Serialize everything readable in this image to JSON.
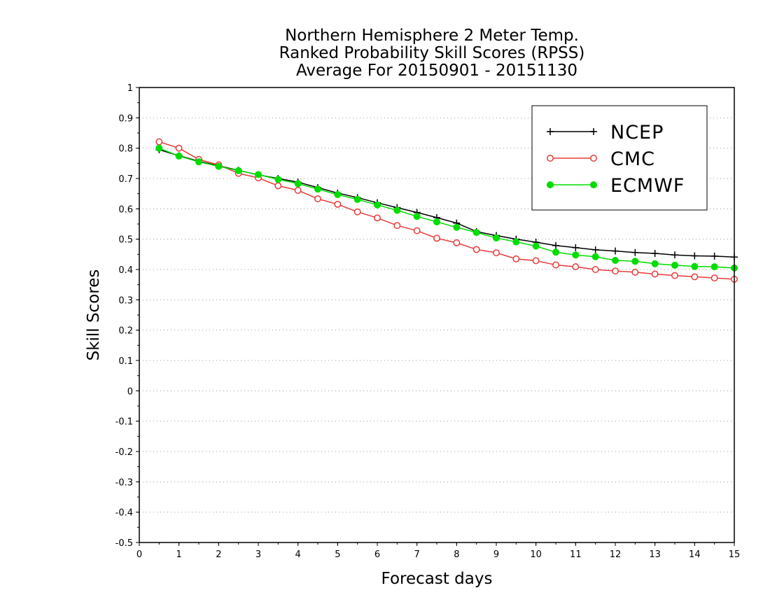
{
  "chart_data": {
    "type": "line",
    "title_lines": [
      "Northern Hemisphere 2 Meter Temp.",
      "Ranked Probability Skill Scores (RPSS)",
      "Average For 20150901 - 20151130"
    ],
    "xlabel": "Forecast days",
    "ylabel": "Skill Scores",
    "xlim": [
      0,
      15
    ],
    "ylim": [
      -0.5,
      1
    ],
    "x_ticks": [
      "0",
      "1",
      "2",
      "3",
      "4",
      "5",
      "6",
      "7",
      "8",
      "9",
      "10",
      "11",
      "12",
      "13",
      "14",
      "15"
    ],
    "y_ticks": [
      "1",
      "0.9",
      "0.8",
      "0.7",
      "0.6",
      "0.5",
      "0.4",
      "0.3",
      "0.2",
      "0.1",
      "0",
      "-0.1",
      "-0.2",
      "-0.3",
      "-0.4",
      "-0.5"
    ],
    "grid": "horizontal dotted",
    "legend_position": "top-right",
    "x": [
      0.5,
      1,
      1.5,
      2,
      2.5,
      3,
      3.5,
      4,
      4.5,
      5,
      5.5,
      6,
      6.5,
      7,
      7.5,
      8,
      8.5,
      9,
      9.5,
      10,
      10.5,
      11,
      11.5,
      12,
      12.5,
      13,
      13.5,
      14,
      14.5,
      15
    ],
    "series": [
      {
        "name": "NCEP",
        "color": "#000000",
        "marker": "plus",
        "values": [
          0.795,
          0.775,
          0.757,
          0.742,
          0.727,
          0.712,
          0.7,
          0.688,
          0.67,
          0.652,
          0.637,
          0.62,
          0.604,
          0.588,
          0.571,
          0.553,
          0.525,
          0.512,
          0.5,
          0.49,
          0.479,
          0.472,
          0.465,
          0.461,
          0.456,
          0.453,
          0.448,
          0.445,
          0.444,
          0.441
        ]
      },
      {
        "name": "CMC",
        "color": "#e83a3a",
        "marker": "open-circle",
        "values": [
          0.821,
          0.8,
          0.763,
          0.745,
          0.717,
          0.702,
          0.676,
          0.661,
          0.633,
          0.615,
          0.59,
          0.57,
          0.545,
          0.528,
          0.503,
          0.488,
          0.466,
          0.455,
          0.435,
          0.429,
          0.415,
          0.409,
          0.4,
          0.395,
          0.391,
          0.385,
          0.38,
          0.376,
          0.372,
          0.368
        ]
      },
      {
        "name": "ECMWF",
        "color": "#00dd00",
        "marker": "filled-circle",
        "values": [
          0.8,
          0.774,
          0.755,
          0.74,
          0.726,
          0.713,
          0.697,
          0.683,
          0.665,
          0.647,
          0.631,
          0.613,
          0.595,
          0.575,
          0.557,
          0.539,
          0.522,
          0.504,
          0.491,
          0.477,
          0.457,
          0.448,
          0.442,
          0.43,
          0.427,
          0.419,
          0.414,
          0.41,
          0.409,
          0.405
        ]
      }
    ]
  }
}
